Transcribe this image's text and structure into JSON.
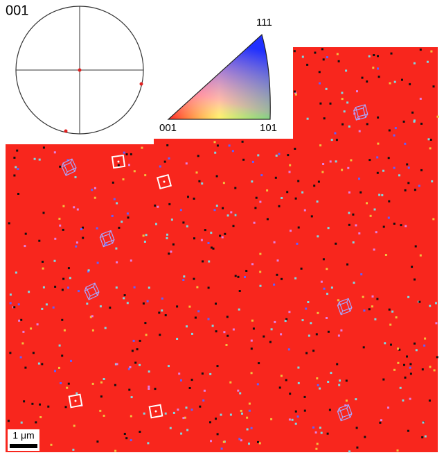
{
  "pole_figure": {
    "label": "001"
  },
  "ipf_key": {
    "corners": [
      "111",
      "001",
      "101"
    ]
  },
  "scale_bar": {
    "label": "1 μm"
  }
}
